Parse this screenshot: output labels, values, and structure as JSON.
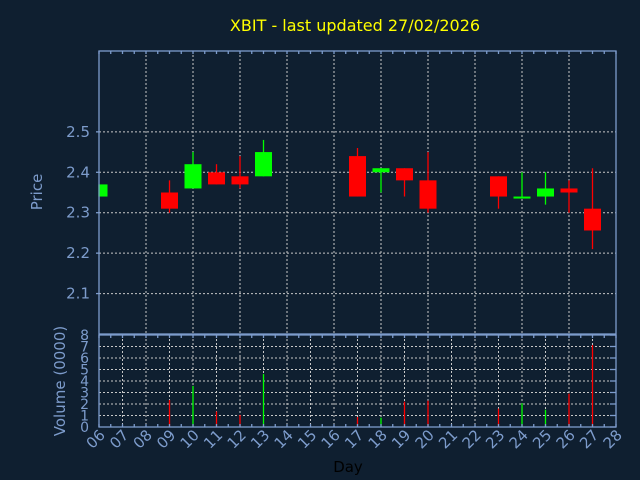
{
  "chart_data": {
    "type": "candlestick",
    "title": "XBIT - last updated 27/02/2026",
    "xlabel": "Day",
    "ylabel": "Price",
    "volume_label": "Volume (0000)",
    "x_ticks": [
      "06",
      "07",
      "08",
      "09",
      "10",
      "11",
      "12",
      "13",
      "14",
      "15",
      "16",
      "17",
      "18",
      "19",
      "20",
      "21",
      "22",
      "23",
      "24",
      "25",
      "26",
      "27",
      "28"
    ],
    "price_ticks": [
      2.1,
      2.2,
      2.3,
      2.4,
      2.5
    ],
    "price_ylim": [
      2.0,
      2.7
    ],
    "volume_ticks": [
      0,
      1,
      2,
      3,
      4,
      5,
      6,
      7,
      8
    ],
    "volume_ylim": [
      0,
      8
    ],
    "grid": true,
    "colors": {
      "up": "#00ff00",
      "down": "#ff0000",
      "title": "#ffff00",
      "axis": "#7d9ccc",
      "background": "#0f1f30"
    },
    "candles": [
      {
        "day": 6,
        "open": 2.34,
        "high": 2.37,
        "low": 2.34,
        "close": 2.37,
        "volume": 0
      },
      {
        "day": 9,
        "open": 2.35,
        "high": 2.38,
        "low": 2.3,
        "close": 2.31,
        "volume": 2.35
      },
      {
        "day": 10,
        "open": 2.36,
        "high": 2.45,
        "low": 2.36,
        "close": 2.42,
        "volume": 3.57
      },
      {
        "day": 11,
        "open": 2.4,
        "high": 2.42,
        "low": 2.37,
        "close": 2.37,
        "volume": 1.35
      },
      {
        "day": 12,
        "open": 2.39,
        "high": 2.44,
        "low": 2.36,
        "close": 2.37,
        "volume": 1.05
      },
      {
        "day": 13,
        "open": 2.39,
        "high": 2.48,
        "low": 2.39,
        "close": 2.45,
        "volume": 4.6
      },
      {
        "day": 17,
        "open": 2.44,
        "high": 2.46,
        "low": 2.34,
        "close": 2.34,
        "volume": 0.87
      },
      {
        "day": 18,
        "open": 2.4,
        "high": 2.41,
        "low": 2.35,
        "close": 2.41,
        "volume": 0.81
      },
      {
        "day": 19,
        "open": 2.41,
        "high": 2.41,
        "low": 2.34,
        "close": 2.38,
        "volume": 2.2
      },
      {
        "day": 20,
        "open": 2.38,
        "high": 2.45,
        "low": 2.3,
        "close": 2.31,
        "volume": 2.29
      },
      {
        "day": 23,
        "open": 2.39,
        "high": 2.39,
        "low": 2.31,
        "close": 2.34,
        "volume": 1.6
      },
      {
        "day": 24,
        "open": 2.335,
        "high": 2.4,
        "low": 2.335,
        "close": 2.34,
        "volume": 2.06
      },
      {
        "day": 25,
        "open": 2.34,
        "high": 2.4,
        "low": 2.32,
        "close": 2.36,
        "volume": 1.5
      },
      {
        "day": 26,
        "open": 2.36,
        "high": 2.38,
        "low": 2.3,
        "close": 2.35,
        "volume": 2.9
      },
      {
        "day": 27,
        "open": 2.31,
        "high": 2.41,
        "low": 2.21,
        "close": 2.256,
        "volume": 7.13
      }
    ]
  }
}
